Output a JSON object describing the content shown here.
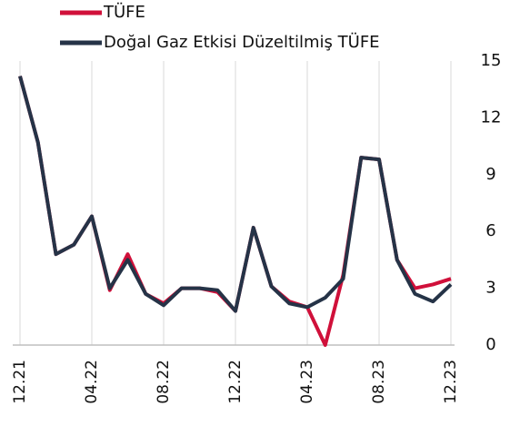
{
  "chart_data": {
    "type": "line",
    "categories": [
      "12.21",
      null,
      null,
      null,
      "04.22",
      null,
      null,
      null,
      "08.22",
      null,
      null,
      null,
      "12.22",
      null,
      null,
      null,
      "04.23",
      null,
      null,
      null,
      "08.23",
      null,
      null,
      null,
      "12.23"
    ],
    "series": [
      {
        "name": "TÜFE",
        "color": "#d0103a",
        "values": [
          14.2,
          10.7,
          4.8,
          5.3,
          6.8,
          2.9,
          4.8,
          2.7,
          2.2,
          3.0,
          3.0,
          2.8,
          1.8,
          6.2,
          3.1,
          2.3,
          2.0,
          0.0,
          3.7,
          9.9,
          9.8,
          4.5,
          3.0,
          3.2,
          3.5
        ]
      },
      {
        "name": "Doğal Gaz Etkisi Düzeltilmiş TÜFE",
        "color": "#253347",
        "values": [
          14.2,
          10.7,
          4.8,
          5.3,
          6.8,
          3.0,
          4.5,
          2.7,
          2.1,
          3.0,
          3.0,
          2.9,
          1.8,
          6.2,
          3.1,
          2.2,
          2.0,
          2.5,
          3.5,
          9.9,
          9.8,
          4.5,
          2.7,
          2.3,
          3.2
        ]
      }
    ],
    "ylim": [
      0,
      15
    ],
    "yticks": [
      0,
      3,
      6,
      9,
      12,
      15
    ],
    "grid": true,
    "legend": "top-left"
  }
}
